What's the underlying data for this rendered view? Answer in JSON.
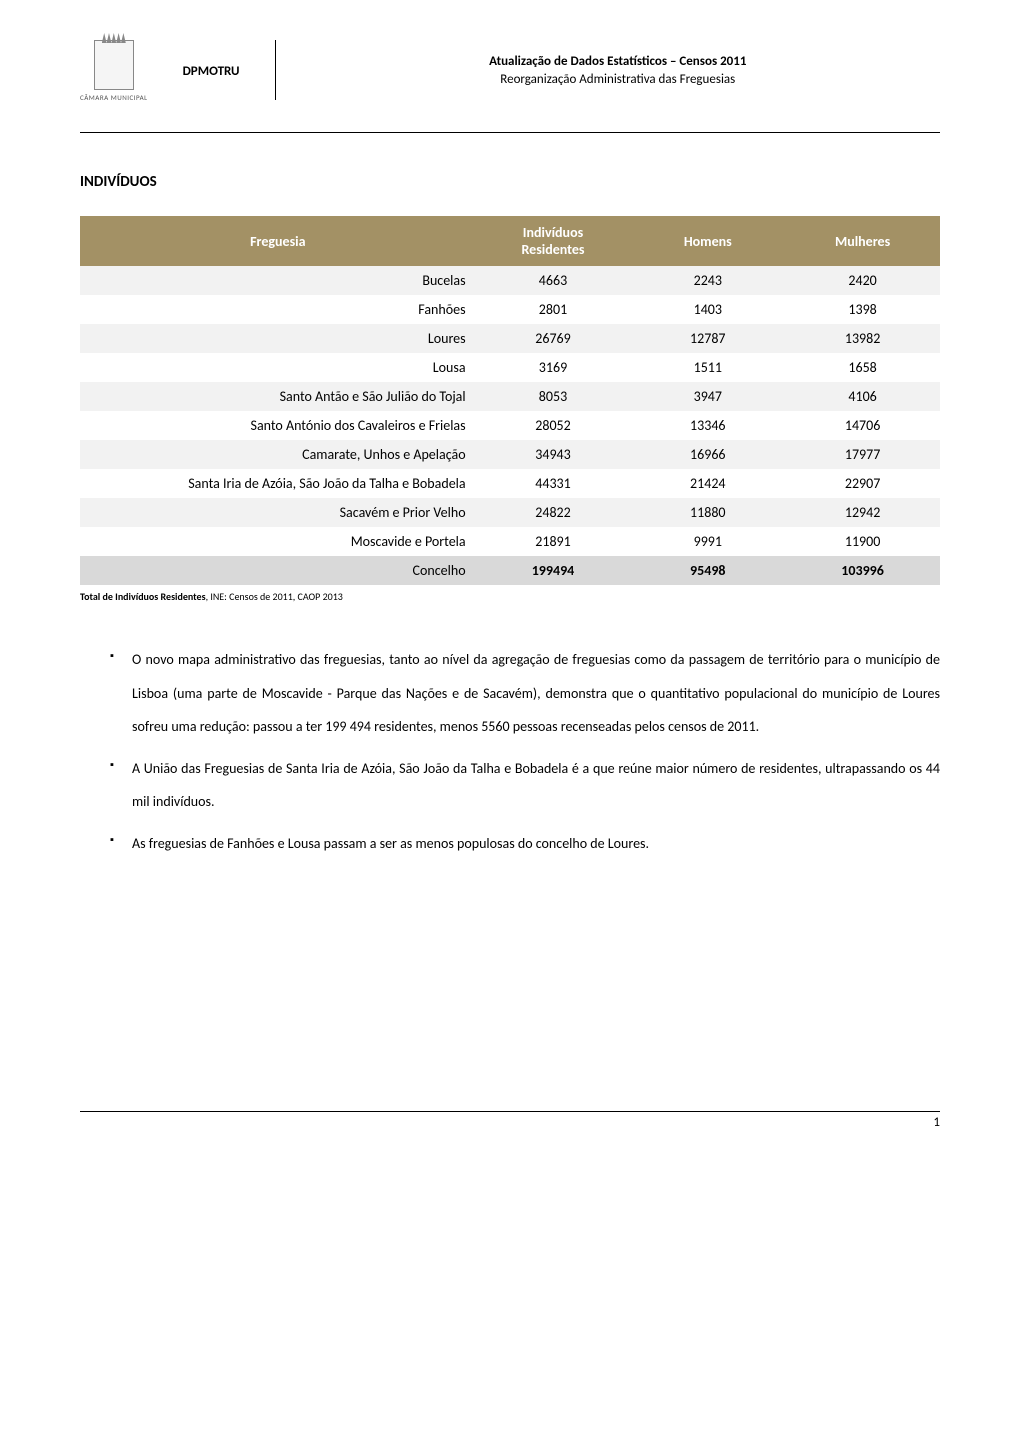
{
  "header": {
    "crest_label": "CÂMARA MUNICIPAL",
    "department": "DPMOTRU",
    "title_bold": "Atualização de Dados Estatísticos – Censos 2011",
    "subtitle": "Reorganização Administrativa das Freguesias"
  },
  "section_heading": "INDIVÍDUOS",
  "table": {
    "header_bg": "#a39165",
    "header_fg": "#ffffff",
    "row_alt_bg": "#f2f2f2",
    "row_bg": "#ffffff",
    "total_row_bg": "#d9d9d9",
    "columns": [
      "Freguesia",
      "Indivíduos Residentes",
      "Homens",
      "Mulheres"
    ],
    "rows": [
      [
        "Bucelas",
        "4663",
        "2243",
        "2420"
      ],
      [
        "Fanhões",
        "2801",
        "1403",
        "1398"
      ],
      [
        "Loures",
        "26769",
        "12787",
        "13982"
      ],
      [
        "Lousa",
        "3169",
        "1511",
        "1658"
      ],
      [
        "Santo Antão e São Julião do Tojal",
        "8053",
        "3947",
        "4106"
      ],
      [
        "Santo António dos Cavaleiros e Frielas",
        "28052",
        "13346",
        "14706"
      ],
      [
        "Camarate, Unhos e Apelação",
        "34943",
        "16966",
        "17977"
      ],
      [
        "Santa Iria de Azóia, São João da Talha e Bobadela",
        "44331",
        "21424",
        "22907"
      ],
      [
        "Sacavém e Prior Velho",
        "24822",
        "11880",
        "12942"
      ],
      [
        "Moscavide e Portela",
        "21891",
        "9991",
        "11900"
      ]
    ],
    "total_row": [
      "Concelho",
      "199494",
      "95498",
      "103996"
    ],
    "col_widths": [
      "46%",
      "18%",
      "18%",
      "18%"
    ]
  },
  "source": {
    "bold": "Total de Indivíduos Residentes",
    "rest": ", INE: Censos de 2011, CAOP 2013"
  },
  "bullets": [
    "O novo mapa administrativo das freguesias, tanto ao nível da agregação de freguesias como da passagem de território para o município de Lisboa (uma parte de Moscavide - Parque das Nações e de Sacavém), demonstra que o quantitativo populacional do município de Loures sofreu uma redução: passou a ter 199 494 residentes, menos 5560 pessoas recenseadas pelos censos de 2011.",
    "A União das Freguesias de Santa Iria de Azóia, São João da Talha e Bobadela é a que reúne maior número de residentes, ultrapassando os 44 mil indivíduos.",
    "As freguesias de Fanhões e Lousa passam a ser as menos populosas do concelho de Loures."
  ],
  "page_number": "1"
}
